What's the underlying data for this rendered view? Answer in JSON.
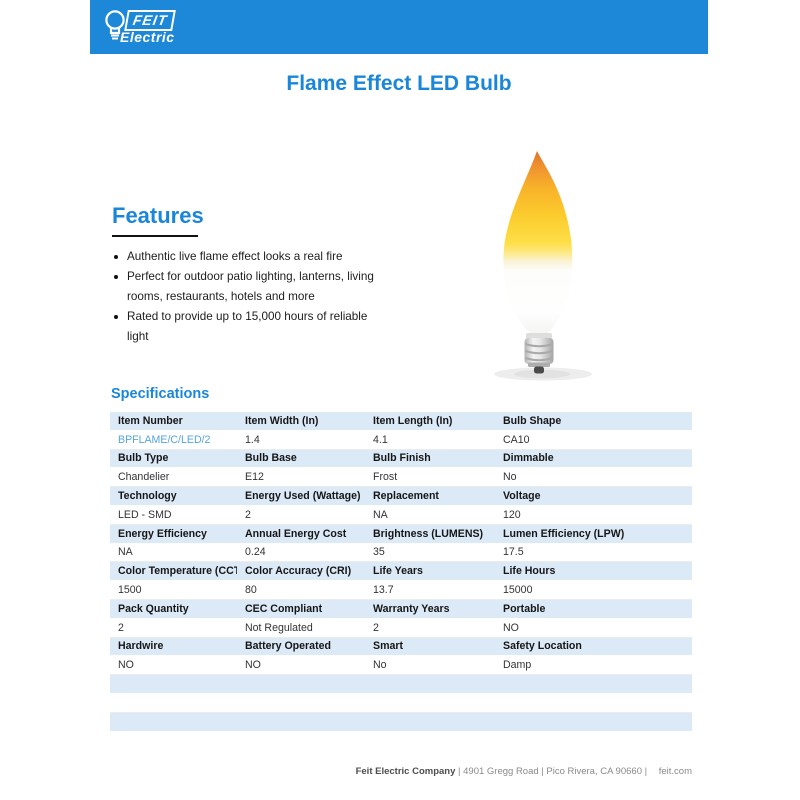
{
  "brand": {
    "name": "FEIT",
    "sub": "Electric"
  },
  "page_title": "Flame Effect LED Bulb",
  "features": {
    "heading": "Features",
    "items": [
      "Authentic live flame effect looks a real fire",
      "Perfect for outdoor patio lighting, lanterns, living rooms, restaurants, hotels and more",
      "Rated to provide up to 15,000 hours of reliable light"
    ]
  },
  "product_image": {
    "alt": "flame-effect-led-bulb"
  },
  "specifications": {
    "heading": "Specifications",
    "groups": [
      {
        "labels": [
          "Item Number",
          "Item Width (In)",
          "Item Length (In)",
          "Bulb Shape"
        ],
        "values": [
          "BPFLAME/C/LED/2",
          "1.4",
          "4.1",
          "CA10"
        ]
      },
      {
        "labels": [
          "Bulb Type",
          "Bulb Base",
          "Bulb Finish",
          "Dimmable"
        ],
        "values": [
          "Chandelier",
          "E12",
          "Frost",
          "No"
        ]
      },
      {
        "labels": [
          "Technology",
          "Energy Used (Wattage)",
          "Replacement",
          "Voltage"
        ],
        "values": [
          "LED - SMD",
          "2",
          "NA",
          "120"
        ]
      },
      {
        "labels": [
          "Energy Efficiency",
          "Annual Energy Cost",
          "Brightness (LUMENS)",
          "Lumen Efficiency (LPW)"
        ],
        "values": [
          "NA",
          "0.24",
          "35",
          "17.5"
        ]
      },
      {
        "labels": [
          "Color Temperature (CCT)",
          "Color Accuracy (CRI)",
          "Life Years",
          "Life Hours"
        ],
        "values": [
          "1500",
          "80",
          "13.7",
          "15000"
        ]
      },
      {
        "labels": [
          "Pack Quantity",
          "CEC Compliant",
          "Warranty Years",
          "Portable"
        ],
        "values": [
          "2",
          "Not Regulated",
          "2",
          "NO"
        ]
      },
      {
        "labels": [
          "Hardwire",
          "Battery Operated",
          "Smart",
          "Safety Location"
        ],
        "values": [
          "NO",
          "NO",
          "No",
          "Damp"
        ]
      }
    ],
    "trailing_empty_rows": [
      "label",
      "value",
      "label"
    ]
  },
  "footer": {
    "company": "Feit Electric Company",
    "meta": "| 4901 Gregg Road | Pico Rivera, CA 90660 |",
    "website": "feit.com"
  },
  "colors": {
    "brand_blue": "#1d87d8",
    "heading_blue": "#1a86d9",
    "table_header_bg": "#dce9f7",
    "link_blue": "#55a5e0"
  }
}
